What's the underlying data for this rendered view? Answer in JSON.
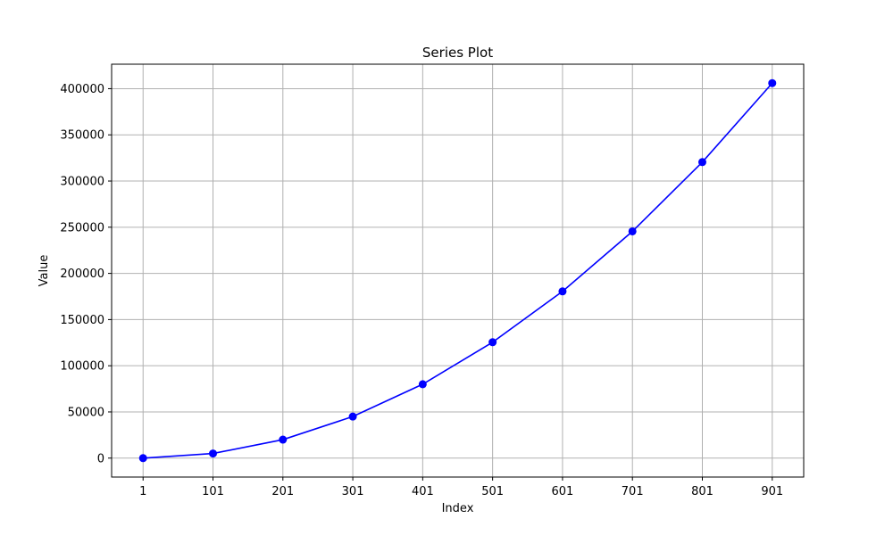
{
  "chart_data": {
    "type": "line",
    "title": "Series Plot",
    "xlabel": "Index",
    "ylabel": "Value",
    "x": [
      1,
      101,
      201,
      301,
      401,
      501,
      601,
      701,
      801,
      901
    ],
    "x_tick_labels": [
      "1",
      "101",
      "201",
      "301",
      "401",
      "501",
      "601",
      "701",
      "801",
      "901"
    ],
    "y_ticks": [
      0,
      50000,
      100000,
      150000,
      200000,
      250000,
      300000,
      350000,
      400000
    ],
    "y_tick_labels": [
      "0",
      "50000",
      "100000",
      "150000",
      "200000",
      "250000",
      "300000",
      "350000",
      "400000"
    ],
    "xlim": [
      -44,
      946
    ],
    "ylim": [
      -20500,
      426500
    ],
    "grid": true,
    "series": [
      {
        "color": "#0000ff",
        "marker": "circle",
        "values": [
          0,
          5000,
          20000,
          45000,
          80000,
          125500,
          180500,
          245500,
          320500,
          406000
        ]
      }
    ]
  }
}
